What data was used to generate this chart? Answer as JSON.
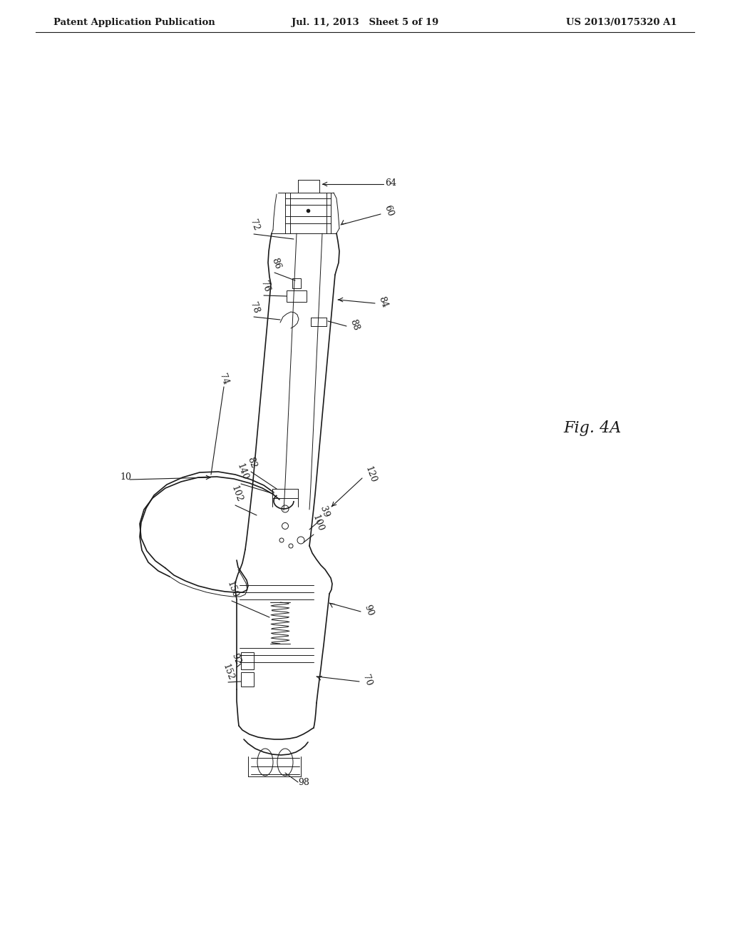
{
  "background_color": "#ffffff",
  "header_left": "Patent Application Publication",
  "header_center": "Jul. 11, 2013   Sheet 5 of 19",
  "header_right": "US 2013/0175320 A1",
  "fig_label": "Fig. 4A",
  "ref_10": "10",
  "ref_39": "39",
  "ref_60": "60",
  "ref_64": "64",
  "ref_70": "70",
  "ref_72": "72",
  "ref_74": "74",
  "ref_76": "76",
  "ref_78": "78",
  "ref_82": "82",
  "ref_84": "84",
  "ref_86": "86",
  "ref_88": "88",
  "ref_90": "90",
  "ref_92": "92",
  "ref_98": "98",
  "ref_100": "100",
  "ref_102": "102",
  "ref_120": "120",
  "ref_140": "140",
  "ref_150": "150",
  "ref_152": "152",
  "line_color": "#1a1a1a",
  "text_color": "#1a1a1a",
  "header_fontsize": 9.5,
  "label_fontsize": 9,
  "fig_label_fontsize": 16
}
